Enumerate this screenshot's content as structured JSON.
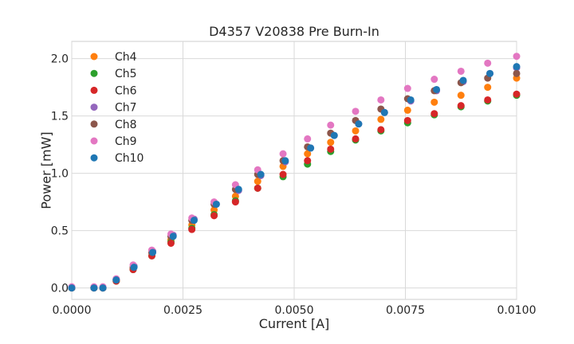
{
  "chart_data": {
    "type": "scatter",
    "title": "D4357 V20838 Pre Burn-In",
    "xlabel": "Current [A]",
    "ylabel": "Power [mW]",
    "xlim": [
      0,
      0.01
    ],
    "ylim": [
      -0.1,
      2.15
    ],
    "xticks": [
      0,
      0.0025,
      0.005,
      0.0075,
      0.01
    ],
    "xtick_labels": [
      "0.0000",
      "0.0025",
      "0.0050",
      "0.0075",
      "0.0100"
    ],
    "yticks": [
      0,
      0.5,
      1.0,
      1.5,
      2.0
    ],
    "ytick_labels": [
      "0.0",
      "0.5",
      "1.0",
      "1.5",
      "2.0"
    ],
    "grid": true,
    "legend_position": "upper-left",
    "series": [
      {
        "name": "Ch4",
        "color": "#ff7f0e",
        "points": [
          [
            0,
            0.0
          ],
          [
            0.0005,
            0.0
          ],
          [
            0.0007,
            0.0
          ],
          [
            0.001,
            0.06
          ],
          [
            0.00138,
            0.17
          ],
          [
            0.0018,
            0.31
          ],
          [
            0.00223,
            0.42
          ],
          [
            0.0027,
            0.55
          ],
          [
            0.0032,
            0.68
          ],
          [
            0.00368,
            0.8
          ],
          [
            0.00418,
            0.93
          ],
          [
            0.00475,
            1.06
          ],
          [
            0.0053,
            1.17
          ],
          [
            0.00582,
            1.27
          ],
          [
            0.00638,
            1.37
          ],
          [
            0.00695,
            1.47
          ],
          [
            0.00755,
            1.55
          ],
          [
            0.00815,
            1.62
          ],
          [
            0.00875,
            1.68
          ],
          [
            0.00935,
            1.75
          ],
          [
            0.01,
            1.83
          ]
        ]
      },
      {
        "name": "Ch5",
        "color": "#2ca02c",
        "points": [
          [
            0,
            0.0
          ],
          [
            0.0005,
            0.0
          ],
          [
            0.0007,
            0.0
          ],
          [
            0.001,
            0.06
          ],
          [
            0.00138,
            0.16
          ],
          [
            0.0018,
            0.28
          ],
          [
            0.00223,
            0.4
          ],
          [
            0.0027,
            0.52
          ],
          [
            0.0032,
            0.64
          ],
          [
            0.00368,
            0.76
          ],
          [
            0.00418,
            0.87
          ],
          [
            0.00475,
            0.97
          ],
          [
            0.0053,
            1.08
          ],
          [
            0.00582,
            1.19
          ],
          [
            0.00638,
            1.29
          ],
          [
            0.00695,
            1.37
          ],
          [
            0.00755,
            1.44
          ],
          [
            0.00815,
            1.51
          ],
          [
            0.00875,
            1.58
          ],
          [
            0.00935,
            1.63
          ],
          [
            0.01,
            1.68
          ]
        ]
      },
      {
        "name": "Ch6",
        "color": "#d62728",
        "points": [
          [
            0,
            0.0
          ],
          [
            0.0005,
            0.0
          ],
          [
            0.0007,
            0.0
          ],
          [
            0.001,
            0.06
          ],
          [
            0.00138,
            0.16
          ],
          [
            0.0018,
            0.28
          ],
          [
            0.00223,
            0.39
          ],
          [
            0.0027,
            0.51
          ],
          [
            0.0032,
            0.63
          ],
          [
            0.00368,
            0.75
          ],
          [
            0.00418,
            0.87
          ],
          [
            0.00475,
            0.99
          ],
          [
            0.0053,
            1.11
          ],
          [
            0.00582,
            1.21
          ],
          [
            0.00638,
            1.3
          ],
          [
            0.00695,
            1.38
          ],
          [
            0.00755,
            1.46
          ],
          [
            0.00815,
            1.52
          ],
          [
            0.00875,
            1.59
          ],
          [
            0.00935,
            1.64
          ],
          [
            0.01,
            1.69
          ]
        ]
      },
      {
        "name": "Ch7",
        "color": "#9467bd",
        "points": [
          [
            0,
            0.0
          ],
          [
            0.0005,
            0.0
          ],
          [
            0.0007,
            0.0
          ],
          [
            0.001,
            0.07
          ],
          [
            0.0014,
            0.19
          ],
          [
            0.00182,
            0.32
          ],
          [
            0.00228,
            0.46
          ],
          [
            0.00275,
            0.6
          ],
          [
            0.00325,
            0.73
          ],
          [
            0.00375,
            0.85
          ],
          [
            0.00425,
            0.98
          ],
          [
            0.0048,
            1.1
          ],
          [
            0.00537,
            1.22
          ],
          [
            0.0059,
            1.33
          ],
          [
            0.00645,
            1.43
          ],
          [
            0.00703,
            1.53
          ],
          [
            0.00762,
            1.63
          ],
          [
            0.0082,
            1.72
          ],
          [
            0.0088,
            1.8
          ],
          [
            0.0094,
            1.87
          ],
          [
            0.01,
            1.92
          ]
        ]
      },
      {
        "name": "Ch8",
        "color": "#8c564b",
        "points": [
          [
            0,
            0.0
          ],
          [
            0.0005,
            0.0
          ],
          [
            0.0007,
            0.0
          ],
          [
            0.001,
            0.07
          ],
          [
            0.00138,
            0.18
          ],
          [
            0.0018,
            0.31
          ],
          [
            0.00223,
            0.45
          ],
          [
            0.0027,
            0.59
          ],
          [
            0.0032,
            0.73
          ],
          [
            0.00368,
            0.86
          ],
          [
            0.00418,
            0.99
          ],
          [
            0.00475,
            1.11
          ],
          [
            0.0053,
            1.23
          ],
          [
            0.00582,
            1.35
          ],
          [
            0.00638,
            1.46
          ],
          [
            0.00695,
            1.56
          ],
          [
            0.00755,
            1.65
          ],
          [
            0.00815,
            1.72
          ],
          [
            0.00875,
            1.79
          ],
          [
            0.00935,
            1.83
          ],
          [
            0.01,
            1.87
          ]
        ]
      },
      {
        "name": "Ch9",
        "color": "#e377c2",
        "points": [
          [
            0,
            0.01
          ],
          [
            0.0005,
            0.01
          ],
          [
            0.0007,
            0.01
          ],
          [
            0.001,
            0.08
          ],
          [
            0.00138,
            0.2
          ],
          [
            0.0018,
            0.33
          ],
          [
            0.00223,
            0.47
          ],
          [
            0.0027,
            0.61
          ],
          [
            0.0032,
            0.75
          ],
          [
            0.00368,
            0.9
          ],
          [
            0.00418,
            1.03
          ],
          [
            0.00475,
            1.17
          ],
          [
            0.0053,
            1.3
          ],
          [
            0.00582,
            1.42
          ],
          [
            0.00638,
            1.54
          ],
          [
            0.00695,
            1.64
          ],
          [
            0.00755,
            1.74
          ],
          [
            0.00815,
            1.82
          ],
          [
            0.00875,
            1.89
          ],
          [
            0.00935,
            1.96
          ],
          [
            0.01,
            2.02
          ]
        ]
      },
      {
        "name": "Ch10",
        "color": "#1f77b4",
        "points": [
          [
            0,
            0.0
          ],
          [
            0.0005,
            0.0
          ],
          [
            0.0007,
            0.0
          ],
          [
            0.001,
            0.07
          ],
          [
            0.0014,
            0.18
          ],
          [
            0.00182,
            0.31
          ],
          [
            0.00228,
            0.45
          ],
          [
            0.00275,
            0.59
          ],
          [
            0.00325,
            0.73
          ],
          [
            0.00375,
            0.86
          ],
          [
            0.00425,
            0.99
          ],
          [
            0.0048,
            1.11
          ],
          [
            0.00537,
            1.22
          ],
          [
            0.0059,
            1.33
          ],
          [
            0.00645,
            1.43
          ],
          [
            0.00703,
            1.53
          ],
          [
            0.00762,
            1.64
          ],
          [
            0.0082,
            1.73
          ],
          [
            0.0088,
            1.81
          ],
          [
            0.0094,
            1.87
          ],
          [
            0.01,
            1.93
          ]
        ]
      }
    ]
  }
}
